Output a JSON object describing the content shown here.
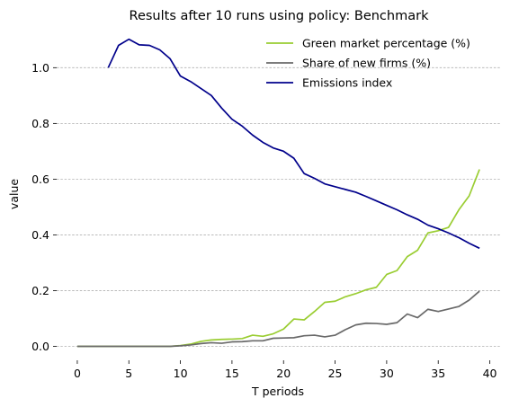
{
  "chart_data": {
    "type": "line",
    "title": "Results after 10 runs using policy: Benchmark",
    "xlabel": "T periods",
    "ylabel": "value",
    "xlim": [
      -2,
      41
    ],
    "ylim": [
      -0.05,
      1.13
    ],
    "xticks": [
      0,
      5,
      10,
      15,
      20,
      25,
      30,
      35,
      40
    ],
    "yticks": [
      0.0,
      0.2,
      0.4,
      0.6,
      0.8,
      1.0
    ],
    "ytick_labels": [
      "0.0",
      "0.2",
      "0.4",
      "0.6",
      "0.8",
      "1.0"
    ],
    "grid": "horizontal dashed",
    "legend_position": "top-right",
    "series": [
      {
        "name": "Green market percentage (%)",
        "color": "#9acd32",
        "x": [
          0,
          1,
          2,
          3,
          4,
          5,
          6,
          7,
          8,
          9,
          10,
          11,
          12,
          13,
          14,
          15,
          16,
          17,
          18,
          19,
          20,
          21,
          22,
          23,
          24,
          25,
          26,
          27,
          28,
          29,
          30,
          31,
          32,
          33,
          34,
          35,
          36,
          37,
          38,
          39
        ],
        "y": [
          0,
          0,
          0,
          0,
          0,
          0,
          0,
          0,
          0,
          0,
          0.003,
          0.008,
          0.018,
          0.023,
          0.025,
          0.026,
          0.028,
          0.04,
          0.036,
          0.045,
          0.062,
          0.098,
          0.095,
          0.125,
          0.158,
          0.162,
          0.178,
          0.189,
          0.203,
          0.212,
          0.258,
          0.272,
          0.322,
          0.345,
          0.407,
          0.415,
          0.427,
          0.49,
          0.54,
          0.635
        ]
      },
      {
        "name": "Share of new firms (%)",
        "color": "#696969",
        "x": [
          0,
          1,
          2,
          3,
          4,
          5,
          6,
          7,
          8,
          9,
          10,
          11,
          12,
          13,
          14,
          15,
          16,
          17,
          18,
          19,
          20,
          21,
          22,
          23,
          24,
          25,
          26,
          27,
          28,
          29,
          30,
          31,
          32,
          33,
          34,
          35,
          36,
          37,
          38,
          39
        ],
        "y": [
          0,
          0,
          0,
          0,
          0,
          0,
          0,
          0,
          0,
          0,
          0.002,
          0.005,
          0.01,
          0.013,
          0.011,
          0.016,
          0.017,
          0.02,
          0.02,
          0.029,
          0.03,
          0.031,
          0.038,
          0.04,
          0.034,
          0.04,
          0.06,
          0.077,
          0.083,
          0.082,
          0.079,
          0.085,
          0.116,
          0.103,
          0.133,
          0.125,
          0.134,
          0.143,
          0.166,
          0.198
        ]
      },
      {
        "name": "Emissions index",
        "color": "#00008b",
        "x": [
          3,
          4,
          5,
          6,
          7,
          8,
          9,
          10,
          11,
          12,
          13,
          14,
          15,
          16,
          17,
          18,
          19,
          20,
          21,
          22,
          23,
          24,
          25,
          26,
          27,
          28,
          29,
          30,
          31,
          32,
          33,
          34,
          35,
          36,
          37,
          38,
          39
        ],
        "y": [
          1.0,
          1.08,
          1.102,
          1.082,
          1.08,
          1.064,
          1.032,
          0.97,
          0.95,
          0.925,
          0.9,
          0.855,
          0.815,
          0.79,
          0.758,
          0.732,
          0.712,
          0.7,
          0.675,
          0.62,
          0.603,
          0.583,
          0.573,
          0.563,
          0.553,
          0.538,
          0.522,
          0.506,
          0.49,
          0.472,
          0.456,
          0.435,
          0.422,
          0.407,
          0.39,
          0.37,
          0.352
        ]
      }
    ]
  }
}
